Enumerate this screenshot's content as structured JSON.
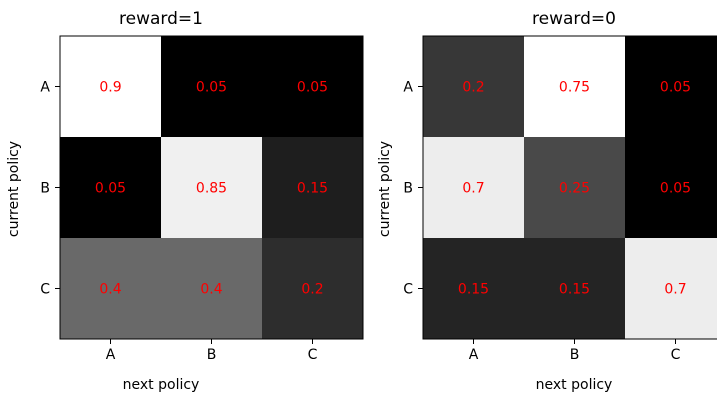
{
  "chart_data": [
    {
      "type": "heatmap",
      "title": "reward=1",
      "xlabel": "next policy",
      "ylabel": "current policy",
      "x_categories": [
        "A",
        "B",
        "C"
      ],
      "y_categories": [
        "A",
        "B",
        "C"
      ],
      "values": [
        [
          0.9,
          0.05,
          0.05
        ],
        [
          0.05,
          0.85,
          0.15
        ],
        [
          0.4,
          0.4,
          0.2
        ]
      ],
      "cell_labels": [
        [
          "0.9",
          "0.05",
          "0.05"
        ],
        [
          "0.05",
          "0.85",
          "0.15"
        ],
        [
          "0.4",
          "0.4",
          "0.2"
        ]
      ],
      "colormap": "gray",
      "annotation_color": "#ff0000"
    },
    {
      "type": "heatmap",
      "title": "reward=0",
      "xlabel": "next policy",
      "ylabel": "current policy",
      "x_categories": [
        "A",
        "B",
        "C"
      ],
      "y_categories": [
        "A",
        "B",
        "C"
      ],
      "values": [
        [
          0.2,
          0.75,
          0.05
        ],
        [
          0.7,
          0.25,
          0.05
        ],
        [
          0.15,
          0.15,
          0.7
        ]
      ],
      "cell_labels": [
        [
          "0.2",
          "0.75",
          "0.05"
        ],
        [
          "0.7",
          "0.25",
          "0.05"
        ],
        [
          "0.15",
          "0.15",
          "0.7"
        ]
      ],
      "colormap": "gray",
      "annotation_color": "#ff0000"
    }
  ]
}
